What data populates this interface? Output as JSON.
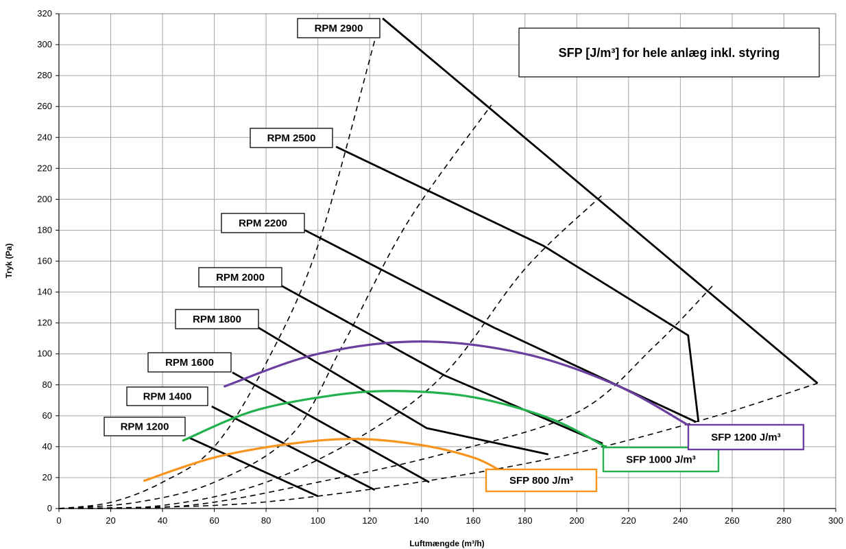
{
  "chart_data": {
    "type": "line",
    "title": "SFP [J/m³] for hele anlæg inkl. styring",
    "xlabel": "Luftmængde (m³/h)",
    "ylabel": "Tryk (Pa)",
    "xlim": [
      0,
      300
    ],
    "ylim": [
      0,
      320
    ],
    "xticks": [
      "0",
      "20",
      "40",
      "60",
      "80",
      "100",
      "120",
      "140",
      "160",
      "180",
      "200",
      "220",
      "240",
      "260",
      "280",
      "300"
    ],
    "yticks": [
      "0",
      "20",
      "40",
      "60",
      "80",
      "100",
      "120",
      "140",
      "160",
      "180",
      "200",
      "220",
      "240",
      "260",
      "280",
      "300",
      "320"
    ],
    "grid": true,
    "rpm_series": [
      {
        "name": "RPM 1200",
        "color": "#000000",
        "points": [
          [
            50,
            46
          ],
          [
            100,
            8
          ]
        ]
      },
      {
        "name": "RPM 1400",
        "color": "#000000",
        "points": [
          [
            59,
            66
          ],
          [
            122,
            12
          ]
        ]
      },
      {
        "name": "RPM 1600",
        "color": "#000000",
        "points": [
          [
            67,
            88
          ],
          [
            143,
            17
          ]
        ]
      },
      {
        "name": "RPM 1800",
        "color": "#000000",
        "points": [
          [
            77,
            117
          ],
          [
            142,
            52
          ],
          [
            189,
            35
          ]
        ]
      },
      {
        "name": "RPM 2000",
        "color": "#000000",
        "points": [
          [
            86,
            144
          ],
          [
            149,
            86
          ],
          [
            210,
            42
          ]
        ]
      },
      {
        "name": "RPM 2200",
        "color": "#000000",
        "points": [
          [
            95,
            180
          ],
          [
            168,
            117
          ],
          [
            246,
            56
          ]
        ]
      },
      {
        "name": "RPM 2500",
        "color": "#000000",
        "points": [
          [
            107,
            234
          ],
          [
            187,
            170
          ],
          [
            243,
            112
          ],
          [
            247,
            56
          ]
        ]
      },
      {
        "name": "RPM 2900",
        "color": "#000000",
        "points": [
          [
            125,
            317
          ],
          [
            293,
            81
          ]
        ]
      }
    ],
    "system_curves": [
      {
        "points": [
          [
            0,
            0
          ],
          [
            20,
            4
          ],
          [
            40,
            17
          ],
          [
            60,
            40
          ],
          [
            80,
            94
          ],
          [
            100,
            170
          ],
          [
            122,
            303
          ]
        ]
      },
      {
        "points": [
          [
            0,
            0
          ],
          [
            30,
            4
          ],
          [
            60,
            17
          ],
          [
            90,
            48
          ],
          [
            110,
            107
          ],
          [
            135,
            186
          ],
          [
            167,
            261
          ]
        ]
      },
      {
        "points": [
          [
            0,
            0
          ],
          [
            40,
            2
          ],
          [
            80,
            17
          ],
          [
            120,
            50
          ],
          [
            150,
            89
          ],
          [
            180,
            155
          ],
          [
            210,
            203
          ]
        ]
      },
      {
        "points": [
          [
            0,
            0
          ],
          [
            50,
            2
          ],
          [
            100,
            17
          ],
          [
            150,
            36
          ],
          [
            200,
            62
          ],
          [
            230,
            105
          ],
          [
            253,
            145
          ]
        ]
      },
      {
        "points": [
          [
            0,
            0
          ],
          [
            60,
            2
          ],
          [
            100,
            8
          ],
          [
            150,
            20
          ],
          [
            200,
            36
          ],
          [
            250,
            58
          ],
          [
            293,
            81
          ]
        ]
      }
    ],
    "sfp_series": [
      {
        "name": "SFP 800 J/m³",
        "color": "#f7941d",
        "points": [
          [
            33,
            18
          ],
          [
            60,
            33
          ],
          [
            90,
            42
          ],
          [
            115,
            45
          ],
          [
            140,
            41
          ],
          [
            160,
            33
          ],
          [
            170,
            25
          ]
        ]
      },
      {
        "name": "SFP 1000 J/m³",
        "color": "#22b14c",
        "points": [
          [
            48,
            44
          ],
          [
            75,
            63
          ],
          [
            105,
            73
          ],
          [
            130,
            76
          ],
          [
            160,
            72
          ],
          [
            190,
            58
          ],
          [
            211,
            40
          ]
        ]
      },
      {
        "name": "SFP 1200 J/m³",
        "color": "#6b3fa0",
        "points": [
          [
            64,
            79
          ],
          [
            100,
            100
          ],
          [
            140,
            108
          ],
          [
            180,
            100
          ],
          [
            215,
            80
          ],
          [
            243,
            54
          ]
        ]
      }
    ]
  }
}
